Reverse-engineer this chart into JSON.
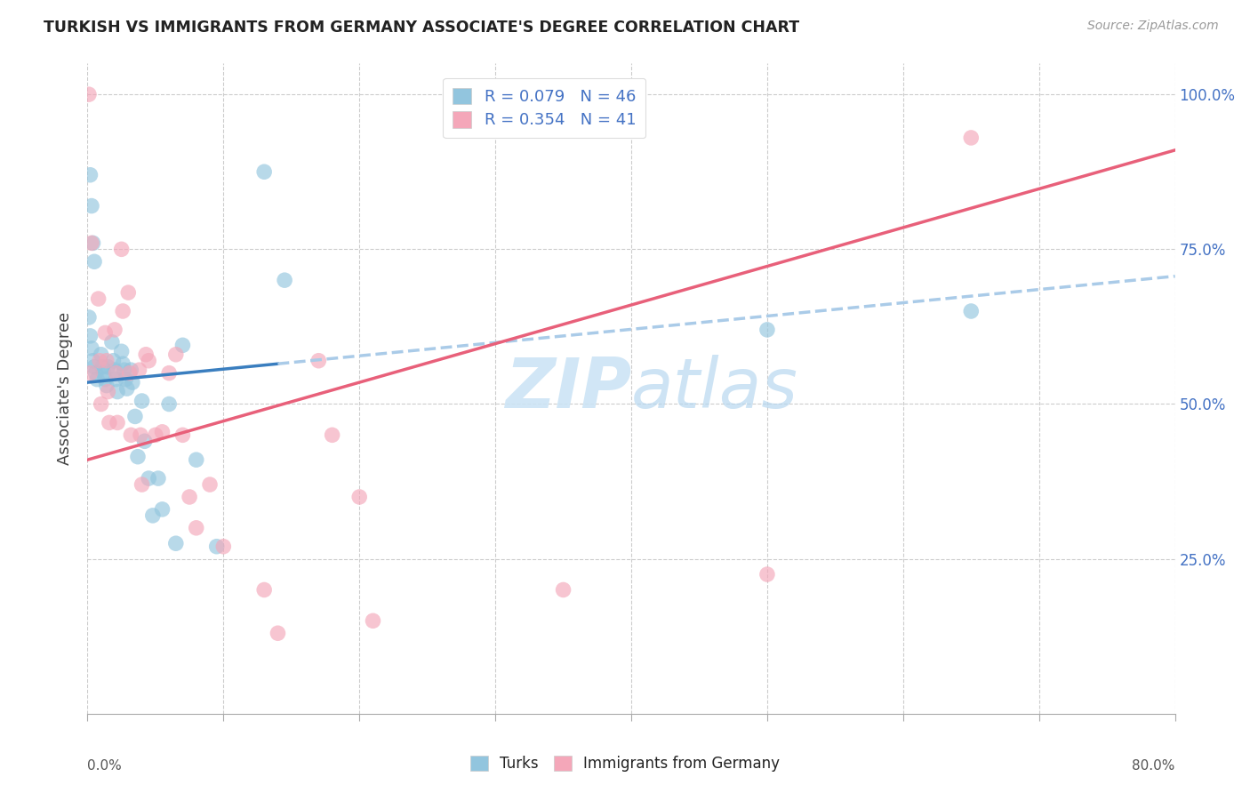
{
  "title": "TURKISH VS IMMIGRANTS FROM GERMANY ASSOCIATE'S DEGREE CORRELATION CHART",
  "source": "Source: ZipAtlas.com",
  "ylabel": "Associate's Degree",
  "right_yticks_vals": [
    1.0,
    0.75,
    0.5,
    0.25
  ],
  "right_yticks_labels": [
    "100.0%",
    "75.0%",
    "50.0%",
    "25.0%"
  ],
  "legend_blue_label": "R = 0.079   N = 46",
  "legend_pink_label": "R = 0.354   N = 41",
  "legend_label_blue": "Turks",
  "legend_label_pink": "Immigrants from Germany",
  "blue_scatter_color": "#92c5de",
  "pink_scatter_color": "#f4a7b9",
  "blue_line_color": "#3a7ebf",
  "pink_line_color": "#e8607a",
  "blue_dashed_color": "#aacbe8",
  "watermark_color": "#cce4f5",
  "xlim": [
    0.0,
    0.8
  ],
  "ylim": [
    0.0,
    1.05
  ],
  "turks_x": [
    0.001,
    0.002,
    0.003,
    0.004,
    0.005,
    0.006,
    0.007,
    0.01,
    0.011,
    0.012,
    0.013,
    0.014,
    0.015,
    0.018,
    0.019,
    0.02,
    0.021,
    0.022,
    0.025,
    0.026,
    0.027,
    0.028,
    0.029,
    0.032,
    0.033,
    0.035,
    0.037,
    0.04,
    0.042,
    0.045,
    0.048,
    0.052,
    0.055,
    0.06,
    0.065,
    0.07,
    0.08,
    0.095,
    0.13,
    0.145,
    0.5,
    0.65,
    0.002,
    0.003,
    0.004,
    0.005
  ],
  "turks_y": [
    0.64,
    0.61,
    0.59,
    0.57,
    0.56,
    0.55,
    0.54,
    0.58,
    0.56,
    0.55,
    0.54,
    0.53,
    0.56,
    0.6,
    0.57,
    0.555,
    0.54,
    0.52,
    0.585,
    0.565,
    0.555,
    0.54,
    0.525,
    0.555,
    0.535,
    0.48,
    0.415,
    0.505,
    0.44,
    0.38,
    0.32,
    0.38,
    0.33,
    0.5,
    0.275,
    0.595,
    0.41,
    0.27,
    0.875,
    0.7,
    0.62,
    0.65,
    0.87,
    0.82,
    0.76,
    0.73
  ],
  "germany_x": [
    0.001,
    0.002,
    0.008,
    0.009,
    0.01,
    0.013,
    0.014,
    0.015,
    0.016,
    0.02,
    0.021,
    0.022,
    0.025,
    0.026,
    0.03,
    0.031,
    0.032,
    0.038,
    0.039,
    0.04,
    0.043,
    0.045,
    0.05,
    0.055,
    0.06,
    0.065,
    0.07,
    0.075,
    0.08,
    0.09,
    0.1,
    0.13,
    0.14,
    0.17,
    0.18,
    0.2,
    0.21,
    0.35,
    0.5,
    0.65,
    0.003
  ],
  "germany_y": [
    1.0,
    0.55,
    0.67,
    0.57,
    0.5,
    0.615,
    0.57,
    0.52,
    0.47,
    0.62,
    0.55,
    0.47,
    0.75,
    0.65,
    0.68,
    0.55,
    0.45,
    0.555,
    0.45,
    0.37,
    0.58,
    0.57,
    0.45,
    0.455,
    0.55,
    0.58,
    0.45,
    0.35,
    0.3,
    0.37,
    0.27,
    0.2,
    0.13,
    0.57,
    0.45,
    0.35,
    0.15,
    0.2,
    0.225,
    0.93,
    0.76
  ]
}
